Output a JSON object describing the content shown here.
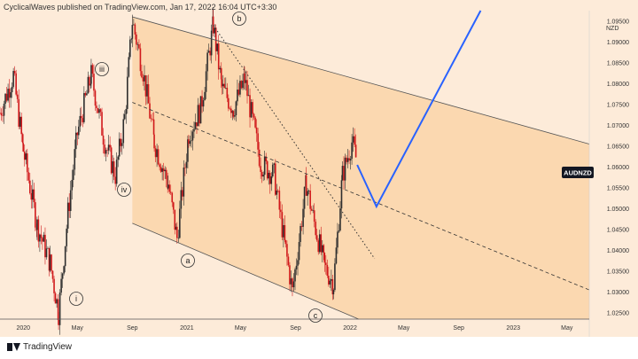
{
  "header": {
    "publisher": "CyclicalWaves published on TradingView.com, Jan 17, 2022 16:04 UTC+3:30"
  },
  "footer": {
    "brand": "TradingView"
  },
  "colors": {
    "background": "#fdebd9",
    "channel_fill": "#fbd8b0",
    "candle_up": "#2e2e2e",
    "candle_down": "#d0191b",
    "projection": "#2962ff",
    "price_badge": "#131722"
  },
  "symbol_badge": "AUDNZD",
  "price_axis": {
    "unit": "NZD",
    "ticks": [
      "1.09500",
      "1.09000",
      "1.08500",
      "1.08000",
      "1.07500",
      "1.07000",
      "1.06500",
      "1.06000",
      "1.05500",
      "1.05000",
      "1.04500",
      "1.04000",
      "1.03500",
      "1.03000",
      "1.02500"
    ]
  },
  "time_axis": {
    "ticks": [
      "2020",
      "May",
      "Sep",
      "2021",
      "May",
      "Sep",
      "2022",
      "May",
      "Sep",
      "2023",
      "May"
    ]
  },
  "wave_labels": [
    {
      "text": "iii"
    },
    {
      "text": "iv"
    },
    {
      "text": "i"
    },
    {
      "text": "b"
    },
    {
      "text": "a"
    },
    {
      "text": "c"
    }
  ],
  "chart_data": {
    "type": "candlestick",
    "symbol": "AUDNZD",
    "ylim": [
      1.0235,
      1.0975
    ],
    "price_path": [
      {
        "date": "2019-11-10",
        "price": 1.073
      },
      {
        "date": "2019-12-10",
        "price": 1.082
      },
      {
        "date": "2020-01-01",
        "price": 1.064
      },
      {
        "date": "2020-02-01",
        "price": 1.046
      },
      {
        "date": "2020-03-01",
        "price": 1.037
      },
      {
        "date": "2020-03-20",
        "price": 1.025
      },
      {
        "date": "2020-04-10",
        "price": 1.049
      },
      {
        "date": "2020-05-01",
        "price": 1.068
      },
      {
        "date": "2020-06-01",
        "price": 1.082
      },
      {
        "date": "2020-07-01",
        "price": 1.066
      },
      {
        "date": "2020-07-25",
        "price": 1.058
      },
      {
        "date": "2020-08-15",
        "price": 1.072
      },
      {
        "date": "2020-09-01",
        "price": 1.095
      },
      {
        "date": "2020-09-25",
        "price": 1.083
      },
      {
        "date": "2020-10-20",
        "price": 1.066
      },
      {
        "date": "2020-11-20",
        "price": 1.056
      },
      {
        "date": "2020-12-10",
        "price": 1.043
      },
      {
        "date": "2021-01-05",
        "price": 1.068
      },
      {
        "date": "2021-02-01",
        "price": 1.074
      },
      {
        "date": "2021-03-01",
        "price": 1.094
      },
      {
        "date": "2021-03-20",
        "price": 1.079
      },
      {
        "date": "2021-04-15",
        "price": 1.074
      },
      {
        "date": "2021-05-10",
        "price": 1.081
      },
      {
        "date": "2021-06-15",
        "price": 1.061
      },
      {
        "date": "2021-07-15",
        "price": 1.058
      },
      {
        "date": "2021-08-10",
        "price": 1.04
      },
      {
        "date": "2021-08-25",
        "price": 1.03
      },
      {
        "date": "2021-09-25",
        "price": 1.056
      },
      {
        "date": "2021-10-10",
        "price": 1.048
      },
      {
        "date": "2021-11-05",
        "price": 1.036
      },
      {
        "date": "2021-11-25",
        "price": 1.032
      },
      {
        "date": "2021-12-15",
        "price": 1.058
      },
      {
        "date": "2022-01-05",
        "price": 1.066
      },
      {
        "date": "2022-01-17",
        "price": 1.061
      }
    ],
    "projection": [
      {
        "date": "2022-01-17",
        "price": 1.0605
      },
      {
        "date": "2022-03-01",
        "price": 1.0505
      },
      {
        "date": "2022-10-20",
        "price": 1.0975
      }
    ],
    "last_price": 1.0605
  }
}
